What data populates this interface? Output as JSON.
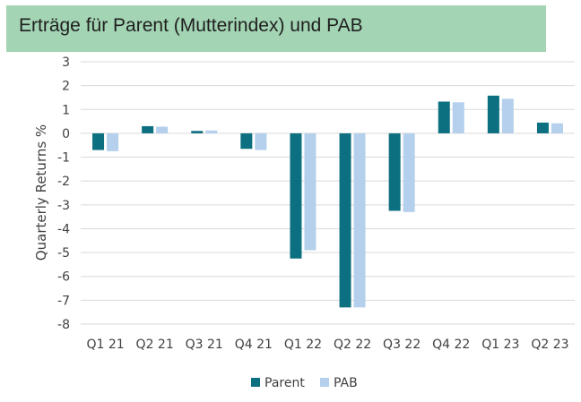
{
  "title_banner": {
    "text": "Erträge für Parent (Mutterindex) und PAB"
  },
  "colors": {
    "banner": "#a3d4b3",
    "parent": "#0c7080",
    "pab": "#b4d0ec",
    "grid": "#d9d9d9",
    "text": "#404040"
  },
  "chart_data": {
    "type": "bar",
    "title": "",
    "xlabel": "",
    "ylabel": "Quarterly Returns %",
    "ylim": [
      -8,
      3
    ],
    "yticks": [
      "3",
      "2",
      "1",
      "0",
      "-1",
      "-2",
      "-3",
      "-4",
      "-5",
      "-6",
      "-7",
      "-8"
    ],
    "grid": true,
    "legend_position": "bottom",
    "categories": [
      "Q1 21",
      "Q2 21",
      "Q3 21",
      "Q4 21",
      "Q1 22",
      "Q2 22",
      "Q3 22",
      "Q4 22",
      "Q1 23",
      "Q2 23"
    ],
    "series": [
      {
        "name": "Parent",
        "values": [
          -0.7,
          0.3,
          0.1,
          -0.65,
          -5.25,
          -7.3,
          -3.25,
          1.33,
          1.58,
          0.45
        ]
      },
      {
        "name": "PAB",
        "values": [
          -0.75,
          0.28,
          0.12,
          -0.7,
          -4.9,
          -7.3,
          -3.3,
          1.3,
          1.45,
          0.42
        ]
      }
    ]
  }
}
